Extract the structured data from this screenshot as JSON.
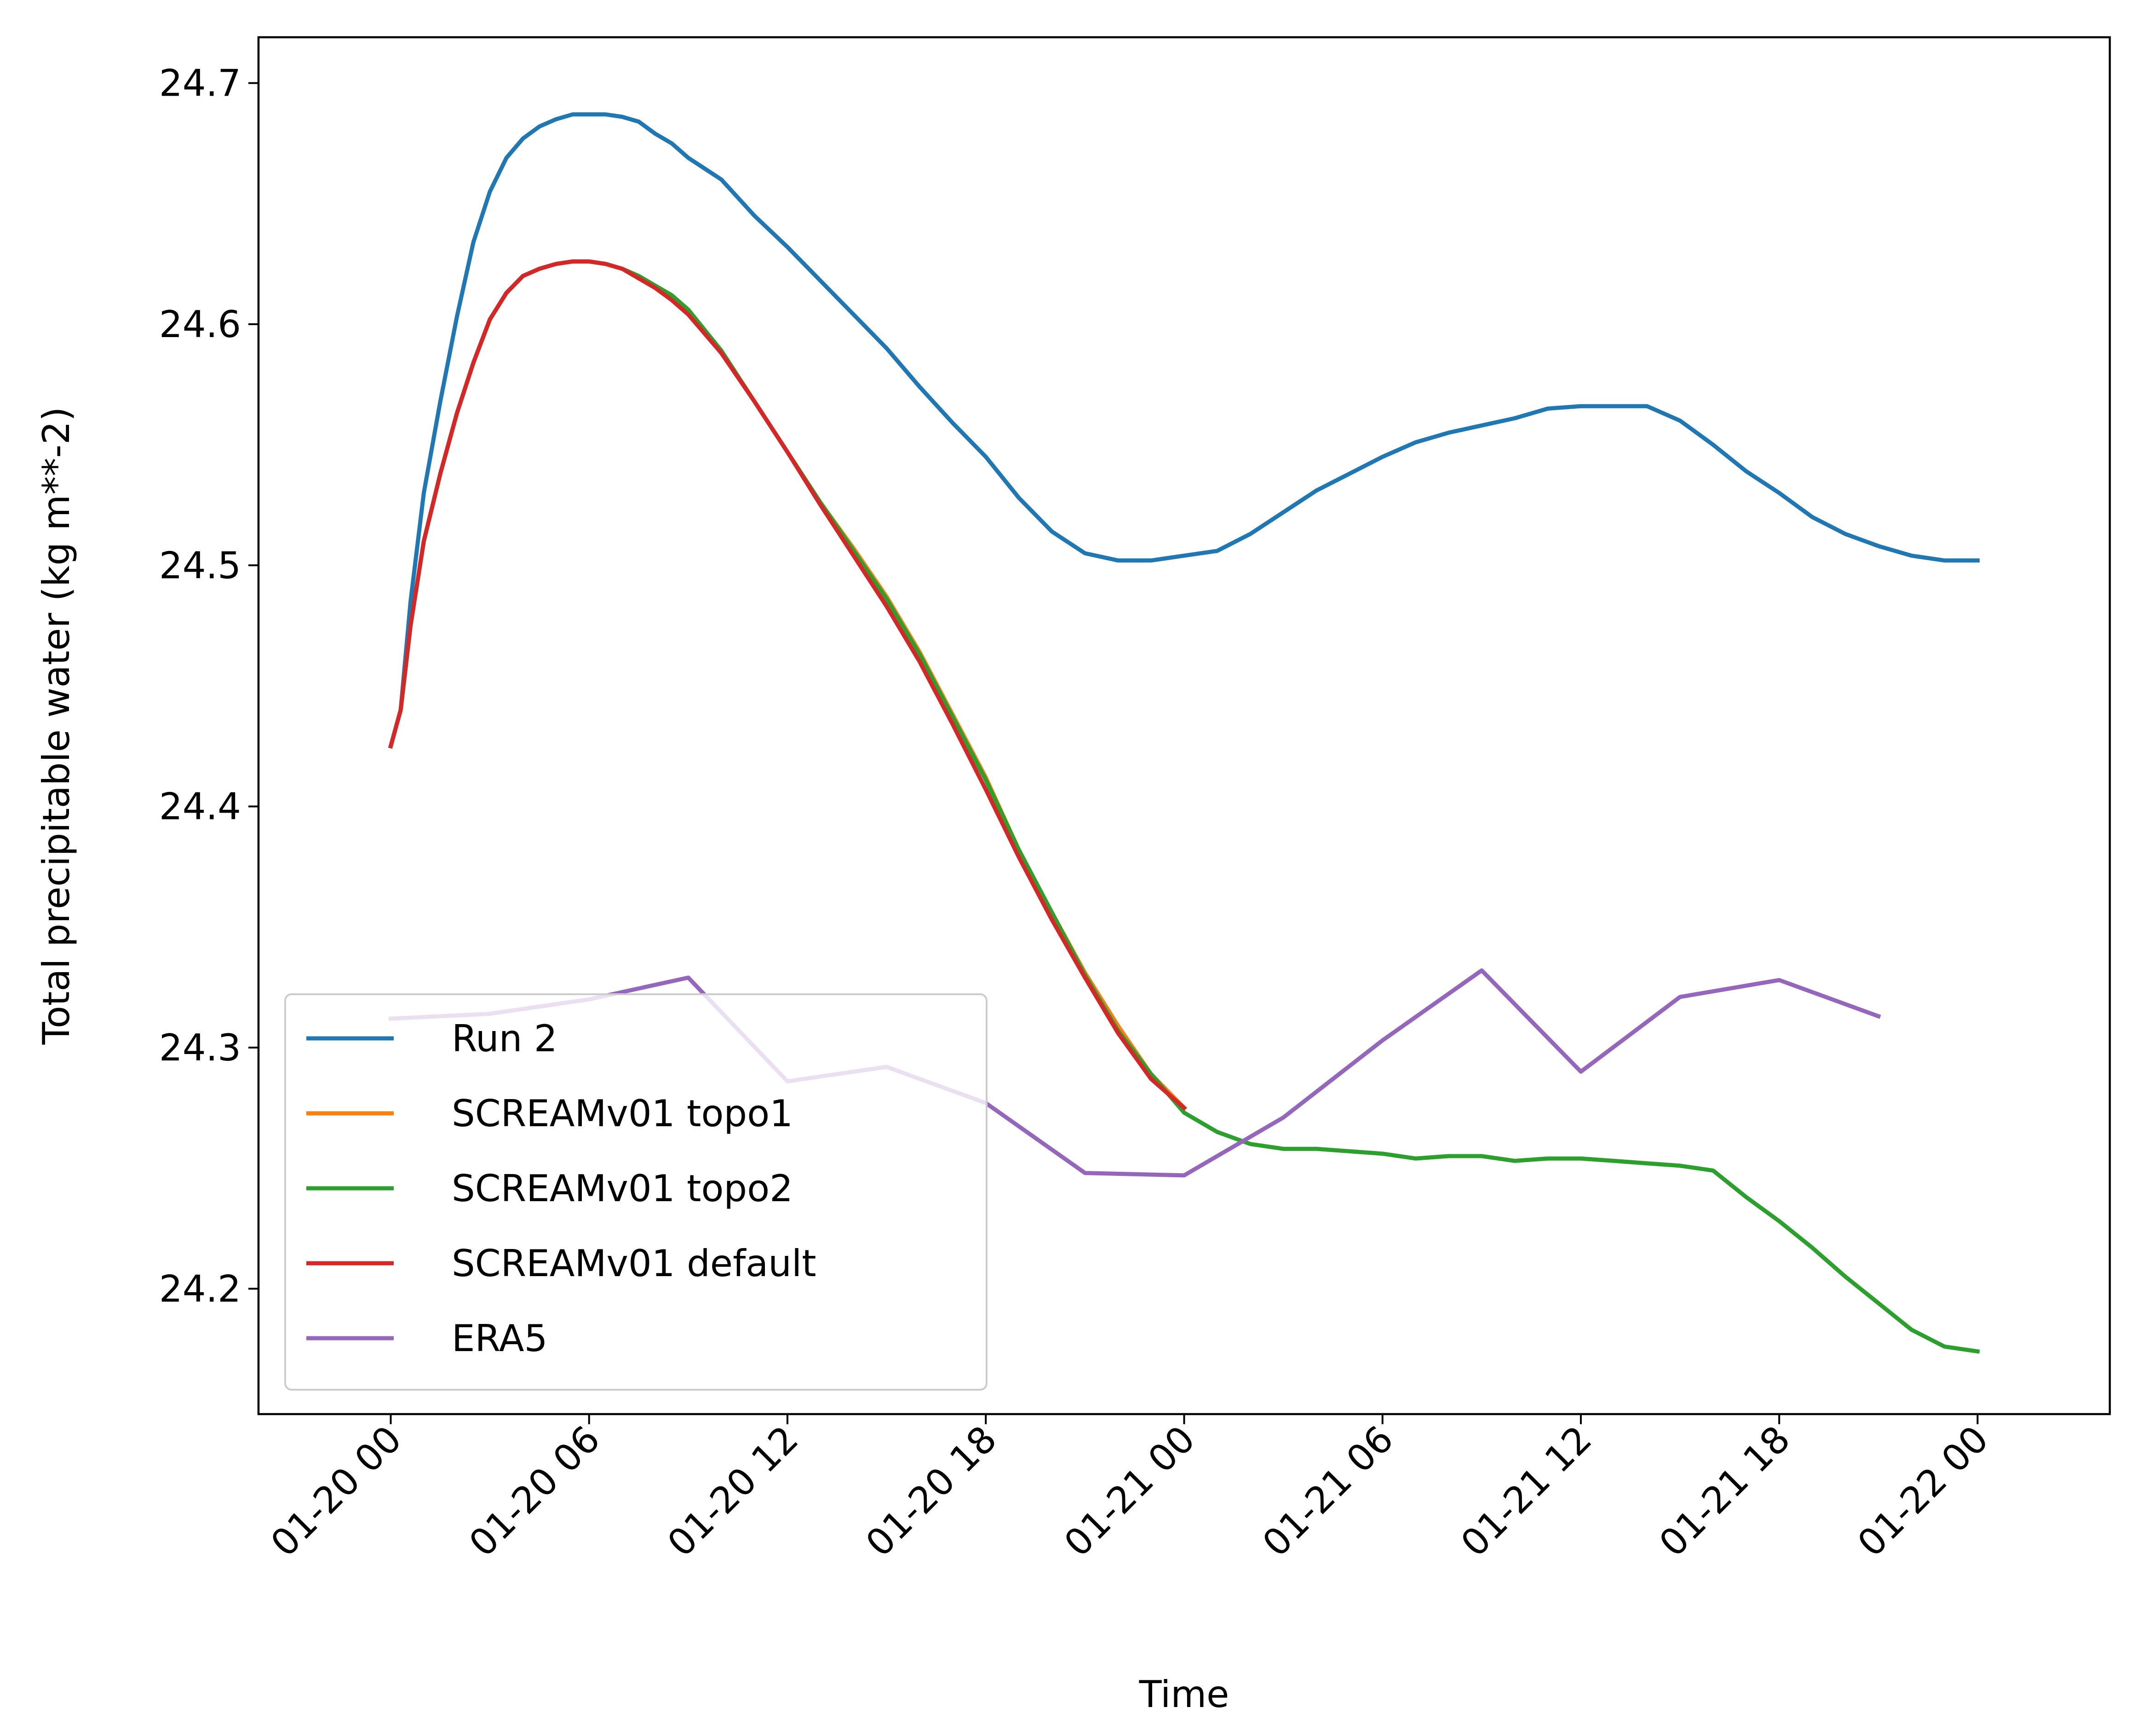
{
  "chart_data": {
    "type": "line",
    "title": "",
    "xlabel": "Time",
    "ylabel": "Total precipitable water (kg m**-2)",
    "xlim": [
      -4,
      52
    ],
    "ylim": [
      24.148,
      24.719
    ],
    "x_unit": "hours since 01-20 00",
    "x_ticks": [
      {
        "value": 0,
        "label": "01-20 00"
      },
      {
        "value": 6,
        "label": "01-20 06"
      },
      {
        "value": 12,
        "label": "01-20 12"
      },
      {
        "value": 18,
        "label": "01-20 18"
      },
      {
        "value": 24,
        "label": "01-21 00"
      },
      {
        "value": 30,
        "label": "01-21 06"
      },
      {
        "value": 36,
        "label": "01-21 12"
      },
      {
        "value": 42,
        "label": "01-21 18"
      },
      {
        "value": 48,
        "label": "01-22 00"
      }
    ],
    "y_ticks": [
      {
        "value": 24.2,
        "label": "24.2"
      },
      {
        "value": 24.3,
        "label": "24.3"
      },
      {
        "value": 24.4,
        "label": "24.4"
      },
      {
        "value": 24.5,
        "label": "24.5"
      },
      {
        "value": 24.6,
        "label": "24.6"
      },
      {
        "value": 24.7,
        "label": "24.7"
      }
    ],
    "legend_position": "lower-left",
    "series": [
      {
        "name": "Run 2",
        "color": "#1f77b4",
        "x": [
          0,
          0.3,
          0.6,
          1,
          1.5,
          2,
          2.5,
          3,
          3.5,
          4,
          4.5,
          5,
          5.5,
          6,
          6.5,
          7,
          7.5,
          8,
          8.5,
          9,
          10,
          11,
          12,
          13,
          14,
          15,
          16,
          17,
          18,
          19,
          20,
          21,
          22,
          23,
          24,
          25,
          26,
          27,
          28,
          29,
          30,
          31,
          32,
          33,
          34,
          35,
          36,
          37,
          38,
          39,
          40,
          41,
          42,
          43,
          44,
          45,
          46,
          47,
          48
        ],
        "y": [
          24.425,
          24.44,
          24.485,
          24.53,
          24.568,
          24.603,
          24.634,
          24.655,
          24.669,
          24.677,
          24.682,
          24.685,
          24.687,
          24.687,
          24.687,
          24.686,
          24.684,
          24.679,
          24.675,
          24.669,
          24.66,
          24.645,
          24.632,
          24.618,
          24.604,
          24.59,
          24.574,
          24.559,
          24.545,
          24.528,
          24.514,
          24.505,
          24.502,
          24.502,
          24.504,
          24.506,
          24.513,
          24.522,
          24.531,
          24.538,
          24.545,
          24.551,
          24.555,
          24.558,
          24.561,
          24.565,
          24.566,
          24.566,
          24.566,
          24.56,
          24.55,
          24.539,
          24.53,
          24.52,
          24.513,
          24.508,
          24.504,
          24.502,
          24.502
        ]
      },
      {
        "name": "SCREAMv01 topo1",
        "color": "#ff7f0e",
        "x": [
          0,
          0.3,
          0.6,
          1,
          1.5,
          2,
          2.5,
          3,
          3.5,
          4,
          4.5,
          5,
          5.5,
          6,
          6.5,
          7,
          7.5,
          8,
          8.5,
          9,
          10,
          11,
          12,
          13,
          14,
          15,
          16,
          17,
          18,
          19,
          20,
          21,
          22,
          23,
          24
        ],
        "y": [
          24.425,
          24.44,
          24.475,
          24.51,
          24.538,
          24.563,
          24.584,
          24.602,
          24.613,
          24.62,
          24.623,
          24.625,
          24.626,
          24.626,
          24.625,
          24.623,
          24.62,
          24.616,
          24.612,
          24.606,
          24.589,
          24.568,
          24.547,
          24.526,
          24.507,
          24.487,
          24.464,
          24.438,
          24.412,
          24.382,
          24.356,
          24.331,
          24.309,
          24.289,
          24.275
        ]
      },
      {
        "name": "SCREAMv01 topo2",
        "color": "#2ca02c",
        "x": [
          0,
          0.3,
          0.6,
          1,
          1.5,
          2,
          2.5,
          3,
          3.5,
          4,
          4.5,
          5,
          5.5,
          6,
          6.5,
          7,
          7.5,
          8,
          8.5,
          9,
          10,
          11,
          12,
          13,
          14,
          15,
          16,
          17,
          18,
          19,
          20,
          21,
          22,
          23,
          24,
          25,
          26,
          27,
          28,
          29,
          30,
          31,
          32,
          33,
          34,
          35,
          36,
          37,
          38,
          39,
          40,
          41,
          42,
          43,
          44,
          45,
          46,
          47,
          48
        ],
        "y": [
          24.425,
          24.44,
          24.475,
          24.51,
          24.538,
          24.563,
          24.584,
          24.602,
          24.613,
          24.62,
          24.623,
          24.625,
          24.626,
          24.626,
          24.625,
          24.623,
          24.62,
          24.616,
          24.612,
          24.606,
          24.589,
          24.568,
          24.547,
          24.526,
          24.506,
          24.486,
          24.463,
          24.437,
          24.411,
          24.382,
          24.356,
          24.33,
          24.307,
          24.289,
          24.273,
          24.265,
          24.26,
          24.258,
          24.258,
          24.257,
          24.256,
          24.254,
          24.255,
          24.255,
          24.253,
          24.254,
          24.254,
          24.253,
          24.252,
          24.251,
          24.249,
          24.238,
          24.228,
          24.217,
          24.205,
          24.194,
          24.183,
          24.176,
          24.174
        ]
      },
      {
        "name": "SCREAMv01 default",
        "color": "#d62728",
        "x": [
          0,
          0.3,
          0.6,
          1,
          1.5,
          2,
          2.5,
          3,
          3.5,
          4,
          4.5,
          5,
          5.5,
          6,
          6.5,
          7,
          7.5,
          8,
          8.5,
          9,
          10,
          11,
          12,
          13,
          14,
          15,
          16,
          17,
          18,
          19,
          20,
          21,
          22,
          23,
          24
        ],
        "y": [
          24.425,
          24.44,
          24.475,
          24.51,
          24.538,
          24.563,
          24.584,
          24.602,
          24.613,
          24.62,
          24.623,
          24.625,
          24.626,
          24.626,
          24.625,
          24.623,
          24.619,
          24.615,
          24.61,
          24.604,
          24.588,
          24.568,
          24.547,
          24.525,
          24.504,
          24.483,
          24.46,
          24.434,
          24.407,
          24.379,
          24.353,
          24.329,
          24.306,
          24.287,
          24.275
        ]
      },
      {
        "name": "ERA5",
        "color": "#9467bd",
        "x": [
          0,
          3,
          6,
          9,
          12,
          15,
          18,
          21,
          24,
          27,
          30,
          33,
          36,
          39,
          42,
          45
        ],
        "y": [
          24.312,
          24.314,
          24.32,
          24.329,
          24.286,
          24.292,
          24.277,
          24.248,
          24.247,
          24.271,
          24.303,
          24.332,
          24.29,
          24.321,
          24.328,
          24.313
        ]
      }
    ]
  }
}
